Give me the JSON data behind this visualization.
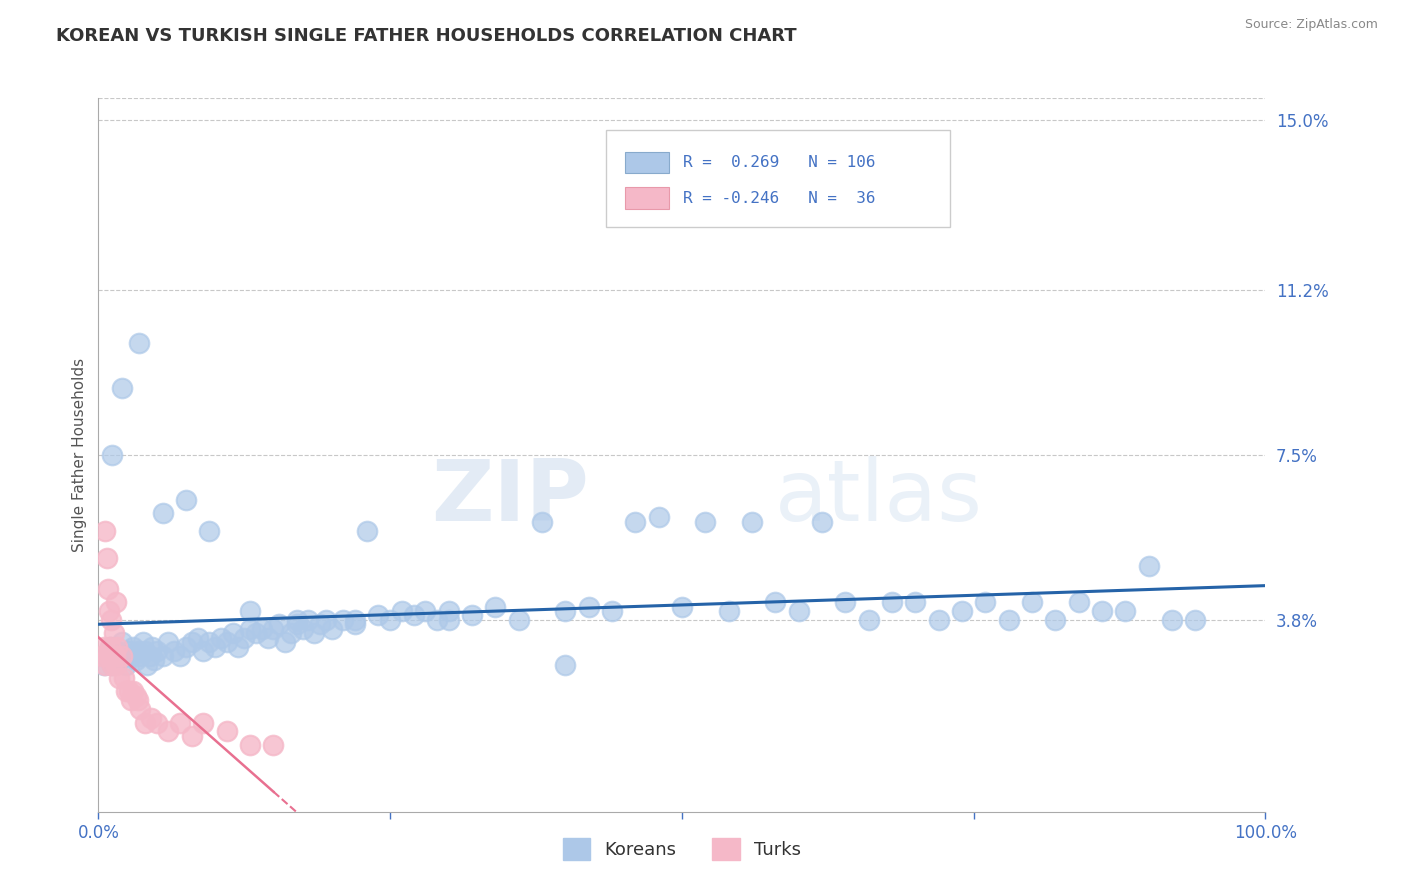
{
  "title": "KOREAN VS TURKISH SINGLE FATHER HOUSEHOLDS CORRELATION CHART",
  "source_text": "Source: ZipAtlas.com",
  "ylabel": "Single Father Households",
  "watermark_zip": "ZIP",
  "watermark_atlas": "atlas",
  "xlim": [
    0,
    1.0
  ],
  "ylim": [
    -0.005,
    0.155
  ],
  "ytick_vals": [
    0.0,
    0.038,
    0.075,
    0.112,
    0.15
  ],
  "ytick_labels": [
    "",
    "3.8%",
    "7.5%",
    "11.2%",
    "15.0%"
  ],
  "korean_R": 0.269,
  "korean_N": 106,
  "turkish_R": -0.246,
  "turkish_N": 36,
  "korean_color": "#adc8e8",
  "turkish_color": "#f5b8c8",
  "korean_line_color": "#2563a8",
  "turkish_line_color": "#e87090",
  "background_color": "#ffffff",
  "grid_color": "#c8c8c8",
  "title_color": "#333333",
  "axis_label_color": "#4472c4",
  "legend_R_color": "#4472c4",
  "korean_scatter_x": [
    0.005,
    0.008,
    0.01,
    0.012,
    0.014,
    0.016,
    0.018,
    0.02,
    0.022,
    0.024,
    0.026,
    0.028,
    0.03,
    0.032,
    0.034,
    0.036,
    0.038,
    0.04,
    0.042,
    0.044,
    0.046,
    0.048,
    0.05,
    0.055,
    0.06,
    0.065,
    0.07,
    0.075,
    0.08,
    0.085,
    0.09,
    0.095,
    0.1,
    0.105,
    0.11,
    0.115,
    0.12,
    0.125,
    0.13,
    0.135,
    0.14,
    0.145,
    0.15,
    0.155,
    0.16,
    0.165,
    0.17,
    0.175,
    0.18,
    0.185,
    0.19,
    0.195,
    0.2,
    0.21,
    0.22,
    0.23,
    0.24,
    0.25,
    0.26,
    0.27,
    0.28,
    0.29,
    0.3,
    0.32,
    0.34,
    0.36,
    0.38,
    0.4,
    0.42,
    0.44,
    0.46,
    0.48,
    0.5,
    0.52,
    0.54,
    0.56,
    0.58,
    0.6,
    0.62,
    0.64,
    0.66,
    0.68,
    0.7,
    0.72,
    0.74,
    0.76,
    0.78,
    0.8,
    0.82,
    0.84,
    0.86,
    0.88,
    0.9,
    0.92,
    0.94,
    0.012,
    0.02,
    0.035,
    0.055,
    0.075,
    0.095,
    0.13,
    0.17,
    0.22,
    0.3,
    0.4
  ],
  "korean_scatter_y": [
    0.028,
    0.03,
    0.032,
    0.028,
    0.03,
    0.031,
    0.029,
    0.033,
    0.03,
    0.028,
    0.031,
    0.03,
    0.032,
    0.029,
    0.031,
    0.03,
    0.033,
    0.031,
    0.028,
    0.03,
    0.032,
    0.029,
    0.031,
    0.03,
    0.033,
    0.031,
    0.03,
    0.032,
    0.033,
    0.034,
    0.031,
    0.033,
    0.032,
    0.034,
    0.033,
    0.035,
    0.032,
    0.034,
    0.036,
    0.035,
    0.036,
    0.034,
    0.036,
    0.037,
    0.033,
    0.035,
    0.037,
    0.036,
    0.038,
    0.035,
    0.037,
    0.038,
    0.036,
    0.038,
    0.037,
    0.058,
    0.039,
    0.038,
    0.04,
    0.039,
    0.04,
    0.038,
    0.04,
    0.039,
    0.041,
    0.038,
    0.06,
    0.04,
    0.041,
    0.04,
    0.06,
    0.061,
    0.041,
    0.06,
    0.04,
    0.06,
    0.042,
    0.04,
    0.06,
    0.042,
    0.038,
    0.042,
    0.042,
    0.038,
    0.04,
    0.042,
    0.038,
    0.042,
    0.038,
    0.042,
    0.04,
    0.04,
    0.05,
    0.038,
    0.038,
    0.075,
    0.09,
    0.1,
    0.062,
    0.065,
    0.058,
    0.04,
    0.038,
    0.038,
    0.038,
    0.028
  ],
  "turkish_scatter_x": [
    0.003,
    0.005,
    0.006,
    0.007,
    0.008,
    0.009,
    0.01,
    0.011,
    0.012,
    0.013,
    0.014,
    0.015,
    0.016,
    0.018,
    0.02,
    0.022,
    0.024,
    0.026,
    0.028,
    0.03,
    0.032,
    0.034,
    0.036,
    0.04,
    0.045,
    0.05,
    0.06,
    0.07,
    0.08,
    0.09,
    0.11,
    0.13,
    0.15,
    0.006,
    0.008,
    0.015
  ],
  "turkish_scatter_y": [
    0.03,
    0.032,
    0.028,
    0.052,
    0.03,
    0.04,
    0.032,
    0.038,
    0.028,
    0.035,
    0.03,
    0.028,
    0.032,
    0.025,
    0.03,
    0.025,
    0.022,
    0.022,
    0.02,
    0.022,
    0.021,
    0.02,
    0.018,
    0.015,
    0.016,
    0.015,
    0.013,
    0.015,
    0.012,
    0.015,
    0.013,
    0.01,
    0.01,
    0.058,
    0.045,
    0.042
  ]
}
